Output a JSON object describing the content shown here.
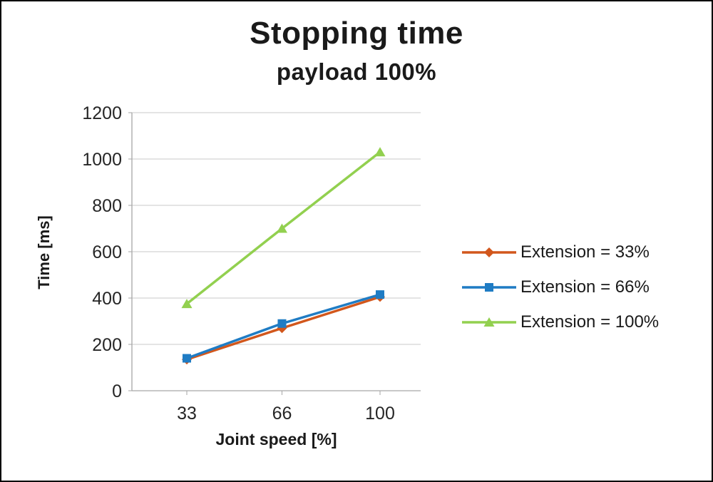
{
  "chart_data": {
    "type": "line",
    "title": "Stopping time",
    "subtitle": "payload 100%",
    "xlabel": "Joint speed [%]",
    "ylabel": "Time [ms]",
    "x": [
      33,
      66,
      100
    ],
    "x_tick_labels": [
      "33",
      "66",
      "100"
    ],
    "y_ticks": [
      0,
      200,
      400,
      600,
      800,
      1000,
      1200
    ],
    "ylim": [
      0,
      1200
    ],
    "grid": "horizontal",
    "legend_position": "right",
    "colors": {
      "gridline": "#C9C9C9",
      "axis": "#A6A6A6"
    },
    "series": [
      {
        "name": "Extension = 33%",
        "values": [
          135,
          270,
          405
        ],
        "color": "#D2571C",
        "marker": "diamond"
      },
      {
        "name": "Extension = 66%",
        "values": [
          140,
          290,
          415
        ],
        "color": "#1F7CC4",
        "marker": "square"
      },
      {
        "name": "Extension = 100%",
        "values": [
          375,
          700,
          1030
        ],
        "color": "#92D04F",
        "marker": "triangle"
      }
    ]
  }
}
